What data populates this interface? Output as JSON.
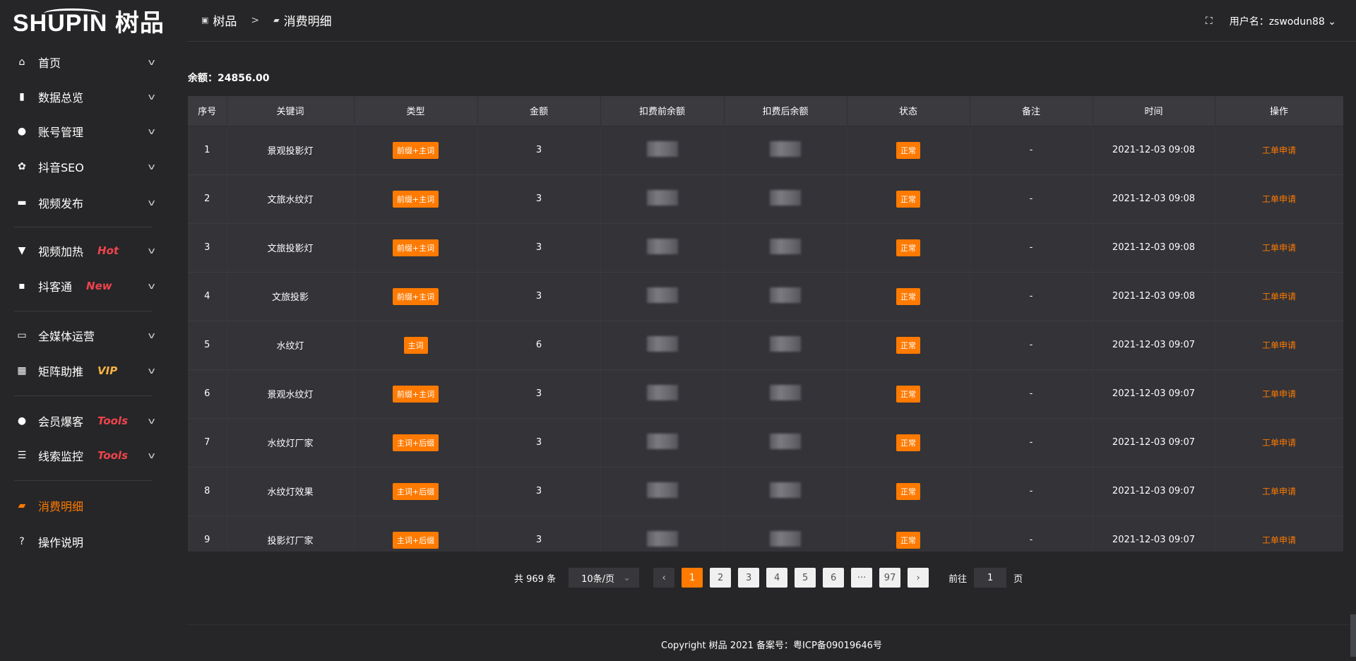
{
  "logo": {
    "text": "SHUPIN 树品"
  },
  "sidebar": {
    "items": [
      {
        "label": "首页",
        "icon": "home-icon",
        "glyph": "⌂"
      },
      {
        "label": "数据总览",
        "icon": "bar-chart-icon",
        "glyph": "▮"
      },
      {
        "label": "账号管理",
        "icon": "user-icon",
        "glyph": "●"
      },
      {
        "label": "抖音SEO",
        "icon": "gear-icon",
        "glyph": "✿"
      },
      {
        "label": "视频发布",
        "icon": "video-icon",
        "glyph": "▬"
      },
      {
        "label": "视频加热",
        "icon": "flag-icon",
        "glyph": "▼",
        "tag": "Hot",
        "tag_color": "#f0434c"
      },
      {
        "label": "抖客通",
        "icon": "chat-icon",
        "glyph": "▪",
        "tag": "New",
        "tag_color": "#f0434c"
      },
      {
        "label": "全媒体运营",
        "icon": "monitor-icon",
        "glyph": "▭"
      },
      {
        "label": "矩阵助推",
        "icon": "grid-icon",
        "glyph": "▦",
        "tag": "VIP",
        "tag_color": "#f5b342"
      },
      {
        "label": "会员爆客",
        "icon": "member-icon",
        "glyph": "●",
        "tag": "Tools",
        "tag_color": "#f0434c"
      },
      {
        "label": "线索监控",
        "icon": "sliders-icon",
        "glyph": "☰",
        "tag": "Tools",
        "tag_color": "#f0434c"
      },
      {
        "label": "消费明细",
        "icon": "wallet-icon",
        "glyph": "▰",
        "active": true
      },
      {
        "label": "操作说明",
        "icon": "help-icon",
        "glyph": "?"
      }
    ]
  },
  "header": {
    "breadcrumb": [
      "树品",
      "消费明细"
    ],
    "breadcrumb_sep": ">",
    "username": "用户名：zswodun88"
  },
  "balance": "余额：24856.00",
  "table": {
    "columns": [
      "序号",
      "关键词",
      "类型",
      "金额",
      "扣费前余额",
      "扣费后余额",
      "状态",
      "备注",
      "时间",
      "操作"
    ],
    "rows": [
      [
        "1",
        "景观投影灯",
        "前缀+主词",
        "3",
        "",
        "",
        "正常",
        "-",
        "2021-12-03 09:08",
        "工单申请"
      ],
      [
        "2",
        "文旅水纹灯",
        "前缀+主词",
        "3",
        "",
        "",
        "正常",
        "-",
        "2021-12-03 09:08",
        "工单申请"
      ],
      [
        "3",
        "文旅投影灯",
        "前缀+主词",
        "3",
        "",
        "",
        "正常",
        "-",
        "2021-12-03 09:08",
        "工单申请"
      ],
      [
        "4",
        "文旅投影",
        "前缀+主词",
        "3",
        "",
        "",
        "正常",
        "-",
        "2021-12-03 09:08",
        "工单申请"
      ],
      [
        "5",
        "水纹灯",
        "主词",
        "6",
        "",
        "",
        "正常",
        "-",
        "2021-12-03 09:07",
        "工单申请"
      ],
      [
        "6",
        "景观水纹灯",
        "前缀+主词",
        "3",
        "",
        "",
        "正常",
        "-",
        "2021-12-03 09:07",
        "工单申请"
      ],
      [
        "7",
        "水纹灯厂家",
        "主词+后缀",
        "3",
        "",
        "",
        "正常",
        "-",
        "2021-12-03 09:07",
        "工单申请"
      ],
      [
        "8",
        "水纹灯效果",
        "主词+后缀",
        "3",
        "",
        "",
        "正常",
        "-",
        "2021-12-03 09:07",
        "工单申请"
      ],
      [
        "9",
        "投影灯厂家",
        "主词+后缀",
        "3",
        "",
        "",
        "正常",
        "-",
        "2021-12-03 09:07",
        "工单申请"
      ]
    ]
  },
  "pagination": {
    "total": "共 969 条",
    "page_size": "10条/页",
    "pages": [
      "1",
      "2",
      "3",
      "4",
      "5",
      "6",
      "···",
      "97"
    ],
    "current": "1",
    "goto_label": "前往",
    "goto_value": "1",
    "page_suffix": "页"
  },
  "footer": "Copyright 树品 2021 备案号：粤ICP备09019646号",
  "colors": {
    "accent": "#ff7a00",
    "background": "#262628",
    "table": "#333338"
  }
}
